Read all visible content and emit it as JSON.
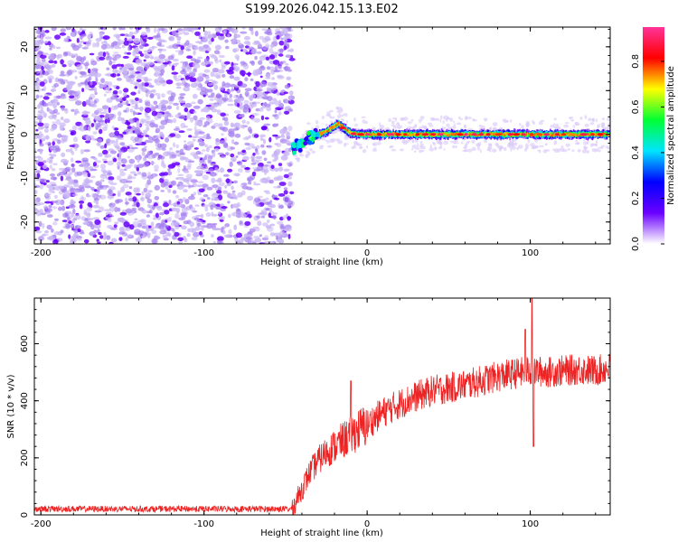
{
  "figure_title": "S199.2026.042.15.13.E02",
  "chart_data": [
    {
      "type": "heatmap",
      "title": "S199.2026.042.15.13.E02",
      "xlabel": "Height of straight line (km)",
      "ylabel": "Frequency (Hz)",
      "xlim": [
        -204,
        149
      ],
      "ylim": [
        -25,
        24.5
      ],
      "xticks": [
        -200,
        -100,
        0,
        100
      ],
      "yticks": [
        20,
        10,
        0,
        -10,
        -20
      ],
      "colorbar": {
        "label": "Normalized spectral amplitude",
        "range": [
          0,
          0.95
        ],
        "ticks": [
          0,
          0.2,
          0.4,
          0.6,
          0.8
        ],
        "tick_labels": [
          "0.0",
          "0.2",
          "0.4",
          "0.6",
          "0.8"
        ],
        "colors": [
          "#ffffff",
          "#6a00ff",
          "#0000ff",
          "#00e5ff",
          "#00ff33",
          "#ffff00",
          "#ff0000",
          "#ff3399"
        ]
      },
      "noise_region_x": [
        -204,
        -46
      ],
      "signal_onset_x": -46,
      "signal_trace": {
        "x": [
          -46,
          -42,
          -38,
          -34,
          -30,
          -26,
          -22,
          -18,
          -14,
          -10,
          -5,
          0,
          20,
          40,
          60,
          80,
          100,
          120,
          149
        ],
        "freq": [
          -3.5,
          -2.5,
          -1.5,
          -0.5,
          0,
          0.5,
          1.5,
          2.5,
          1.2,
          0.2,
          0,
          0,
          0,
          0,
          0,
          0,
          0,
          0,
          0
        ],
        "amplitude_note": "peaks near 0.8-0.9 (red) along 0 Hz beyond x=-30"
      }
    },
    {
      "type": "line",
      "xlabel": "Height of straight line (km)",
      "ylabel": "SNR (10 * v/v)",
      "xlim": [
        -204,
        149
      ],
      "ylim": [
        0,
        760
      ],
      "xticks": [
        -200,
        -100,
        0,
        100
      ],
      "yticks": [
        0,
        200,
        400,
        600
      ],
      "series": [
        {
          "name": "SNR",
          "color": "#ee2222",
          "x": [
            -204,
            -46,
            -40,
            -35,
            -30,
            -25,
            -20,
            -15,
            -10,
            -5,
            0,
            5,
            10,
            20,
            30,
            40,
            50,
            60,
            70,
            80,
            90,
            100,
            110,
            120,
            130,
            140,
            149
          ],
          "y": [
            20,
            20,
            90,
            150,
            190,
            220,
            240,
            260,
            280,
            300,
            315,
            340,
            360,
            390,
            415,
            435,
            445,
            455,
            470,
            485,
            495,
            505,
            500,
            505,
            510,
            505,
            515
          ],
          "spikes": [
            {
              "x": -10,
              "y": 470
            },
            {
              "x": 97,
              "y": 650
            },
            {
              "x": 101,
              "y": 760
            },
            {
              "x": 102,
              "y": 240
            }
          ]
        }
      ]
    }
  ]
}
